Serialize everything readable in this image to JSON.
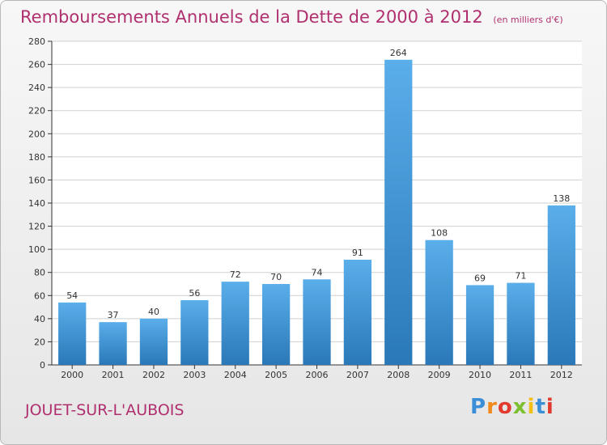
{
  "chart_data": {
    "type": "bar",
    "title": "Remboursements Annuels de la Dette de 2000 à 2012",
    "subtitle": "(en milliers d'€)",
    "categories": [
      "2000",
      "2001",
      "2002",
      "2003",
      "2004",
      "2005",
      "2006",
      "2007",
      "2008",
      "2009",
      "2010",
      "2011",
      "2012"
    ],
    "values": [
      54,
      37,
      40,
      56,
      72,
      70,
      74,
      91,
      264,
      108,
      69,
      71,
      138
    ],
    "ylim": [
      0,
      280
    ],
    "yticks": [
      0,
      20,
      40,
      60,
      80,
      100,
      120,
      140,
      160,
      180,
      200,
      220,
      240,
      260,
      280
    ],
    "grid": true,
    "bar_color": "#3f96d6",
    "xlabel": "",
    "ylabel": ""
  },
  "location": "JOUET-SUR-L'AUBOIS",
  "logo": {
    "text": "Proxiti",
    "letters": [
      {
        "ch": "P",
        "color": "#3a8fd8"
      },
      {
        "ch": "r",
        "color": "#f08a1c"
      },
      {
        "ch": "o",
        "color": "#e23a2e"
      },
      {
        "ch": "x",
        "color": "#7cbf2f"
      },
      {
        "ch": "i",
        "color": "#f2c014"
      },
      {
        "ch": "t",
        "color": "#3a8fd8"
      },
      {
        "ch": "i",
        "color": "#e23a2e"
      }
    ]
  },
  "colors": {
    "title": "#b0306f",
    "grid": "#d0d0d0"
  }
}
